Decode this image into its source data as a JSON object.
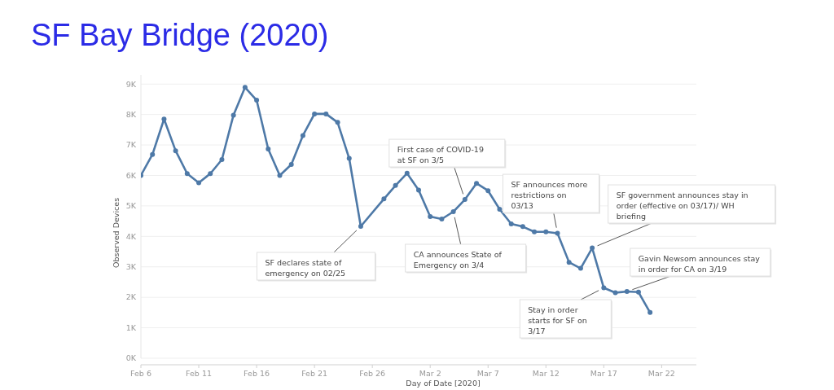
{
  "chart_data": {
    "type": "line",
    "title": "SF Bay Bridge (2020)",
    "xlabel": "Day of Date [2020]",
    "ylabel": "Observed Devices",
    "x": [
      "2020-02-06",
      "2020-02-07",
      "2020-02-08",
      "2020-02-09",
      "2020-02-10",
      "2020-02-11",
      "2020-02-12",
      "2020-02-13",
      "2020-02-14",
      "2020-02-15",
      "2020-02-16",
      "2020-02-17",
      "2020-02-18",
      "2020-02-19",
      "2020-02-20",
      "2020-02-21",
      "2020-02-22",
      "2020-02-23",
      "2020-02-24",
      "2020-02-25",
      "2020-02-27",
      "2020-02-28",
      "2020-02-29",
      "2020-03-01",
      "2020-03-02",
      "2020-03-03",
      "2020-03-04",
      "2020-03-05",
      "2020-03-06",
      "2020-03-07",
      "2020-03-08",
      "2020-03-09",
      "2020-03-10",
      "2020-03-11",
      "2020-03-12",
      "2020-03-13",
      "2020-03-14",
      "2020-03-15",
      "2020-03-16",
      "2020-03-17",
      "2020-03-18",
      "2020-03-19",
      "2020-03-20",
      "2020-03-21"
    ],
    "series": [
      {
        "color": "#4e79a7",
        "values": [
          6000,
          6690,
          7850,
          6810,
          6060,
          5760,
          6060,
          6520,
          7980,
          8890,
          8470,
          6870,
          6000,
          6360,
          7310,
          8020,
          8020,
          7740,
          6560,
          4330,
          5230,
          5670,
          6070,
          5520,
          4650,
          4570,
          4810,
          5210,
          5740,
          5500,
          4890,
          4410,
          4320,
          4150,
          4150,
          4100,
          3150,
          2950,
          3620,
          2310,
          2150,
          2190,
          2170,
          1500
        ]
      }
    ],
    "xlim": [
      "2020-02-06",
      "2020-03-25"
    ],
    "xticks": [
      {
        "value": "2020-02-06",
        "label": "Feb 6"
      },
      {
        "value": "2020-02-11",
        "label": "Feb 11"
      },
      {
        "value": "2020-02-16",
        "label": "Feb 16"
      },
      {
        "value": "2020-02-21",
        "label": "Feb 21"
      },
      {
        "value": "2020-02-26",
        "label": "Feb 26"
      },
      {
        "value": "2020-03-02",
        "label": "Mar 2"
      },
      {
        "value": "2020-03-07",
        "label": "Mar 7"
      },
      {
        "value": "2020-03-12",
        "label": "Mar 12"
      },
      {
        "value": "2020-03-17",
        "label": "Mar 17"
      },
      {
        "value": "2020-03-22",
        "label": "Mar 22"
      }
    ],
    "ylim": [
      0,
      9300
    ],
    "yticks": [
      {
        "value": 0,
        "label": "0K"
      },
      {
        "value": 1000,
        "label": "1K"
      },
      {
        "value": 2000,
        "label": "2K"
      },
      {
        "value": 3000,
        "label": "3K"
      },
      {
        "value": 4000,
        "label": "4K"
      },
      {
        "value": 5000,
        "label": "5K"
      },
      {
        "value": 6000,
        "label": "6K"
      },
      {
        "value": 7000,
        "label": "7K"
      },
      {
        "value": 8000,
        "label": "8K"
      },
      {
        "value": 9000,
        "label": "9K"
      }
    ],
    "grid": "y",
    "marker": "circle",
    "line_style": "solid",
    "annotations": [
      {
        "text": "SF declares state of emergency on 02/25",
        "x": "2020-02-25",
        "y": 4330
      },
      {
        "text": "First case of COVID-19 at SF on 3/5",
        "x": "2020-03-05",
        "y": 5210
      },
      {
        "text": "CA announces State of Emergency on 3/4",
        "x": "2020-03-04",
        "y": 4810
      },
      {
        "text": "SF announces more restrictions on 03/13",
        "x": "2020-03-13",
        "y": 4100
      },
      {
        "text": "SF government announces stay in order (effective on 03/17)/ WH briefing",
        "x": "2020-03-16",
        "y": 3620
      },
      {
        "text": "Stay in order starts for SF on 3/17",
        "x": "2020-03-17",
        "y": 2310
      },
      {
        "text": "Gavin Newsom announces stay in order for CA on 3/19",
        "x": "2020-03-19",
        "y": 2190
      }
    ]
  }
}
